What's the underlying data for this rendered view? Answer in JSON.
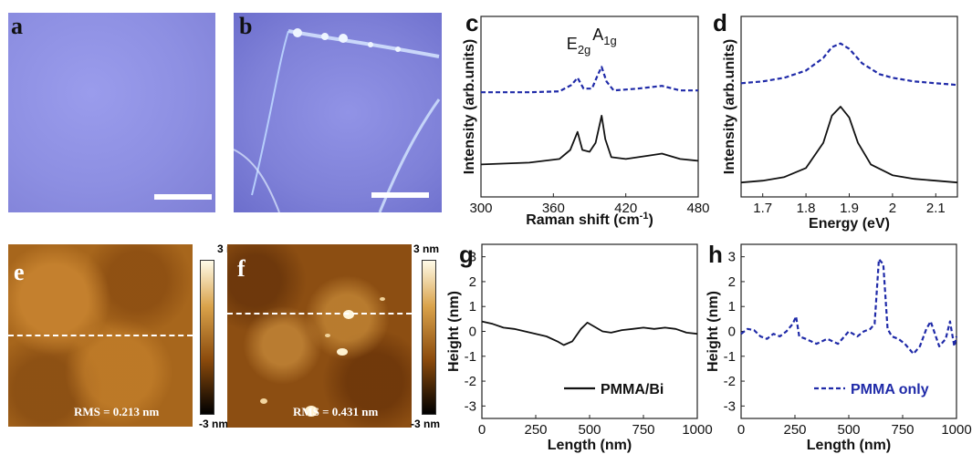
{
  "panels": {
    "a": {
      "label": "a"
    },
    "b": {
      "label": "b"
    },
    "c": {
      "label": "c"
    },
    "d": {
      "label": "d"
    },
    "e": {
      "label": "e",
      "rms": "RMS = 0.213 nm",
      "scale_max": "3 nm",
      "scale_min": "-3 nm"
    },
    "f": {
      "label": "f",
      "rms": "RMS = 0.431 nm",
      "scale_max": "3 nm",
      "scale_min": "-3 nm"
    },
    "g": {
      "label": "g"
    },
    "h": {
      "label": "h"
    }
  },
  "peak_labels": {
    "e2g": "E",
    "e2g_sub": "2g",
    "a1g": "A",
    "a1g_sub": "1g"
  },
  "colors": {
    "solid": "#111111",
    "dashed": "#1f2aa8",
    "optical": "#8e90e4",
    "afm": "#a7661c"
  },
  "chart_data": [
    {
      "id": "c",
      "type": "line",
      "xlabel": "Raman shift (cm-1)",
      "ylabel": "Intensity (arb.units)",
      "xlim": [
        300,
        480
      ],
      "xticks": [
        300,
        360,
        420,
        480
      ],
      "series": [
        {
          "style": "dashed",
          "x": [
            300,
            340,
            365,
            375,
            380,
            385,
            392,
            397,
            400,
            404,
            410,
            430,
            450,
            465,
            480
          ],
          "y": [
            0.58,
            0.58,
            0.585,
            0.62,
            0.66,
            0.6,
            0.6,
            0.68,
            0.72,
            0.64,
            0.59,
            0.6,
            0.615,
            0.59,
            0.59
          ]
        },
        {
          "style": "solid",
          "x": [
            300,
            340,
            365,
            374,
            380,
            384,
            390,
            395,
            400,
            403,
            408,
            420,
            440,
            450,
            465,
            480
          ],
          "y": [
            0.18,
            0.19,
            0.21,
            0.26,
            0.36,
            0.26,
            0.25,
            0.3,
            0.45,
            0.32,
            0.22,
            0.21,
            0.23,
            0.24,
            0.21,
            0.2
          ]
        }
      ]
    },
    {
      "id": "d",
      "type": "line",
      "xlabel": "Energy (eV)",
      "ylabel": "Intensity (arb.units)",
      "xlim": [
        1.65,
        2.15
      ],
      "xticks": [
        1.7,
        1.8,
        1.9,
        2.0,
        2.1
      ],
      "series": [
        {
          "style": "dashed",
          "x": [
            1.65,
            1.7,
            1.75,
            1.8,
            1.84,
            1.86,
            1.88,
            1.9,
            1.93,
            1.97,
            2.0,
            2.05,
            2.1,
            2.15
          ],
          "y": [
            0.63,
            0.64,
            0.66,
            0.7,
            0.77,
            0.83,
            0.85,
            0.82,
            0.74,
            0.68,
            0.66,
            0.64,
            0.63,
            0.62
          ]
        },
        {
          "style": "solid",
          "x": [
            1.65,
            1.7,
            1.75,
            1.8,
            1.84,
            1.86,
            1.88,
            1.9,
            1.92,
            1.95,
            2.0,
            2.05,
            2.1,
            2.15
          ],
          "y": [
            0.08,
            0.09,
            0.11,
            0.16,
            0.3,
            0.45,
            0.5,
            0.44,
            0.3,
            0.18,
            0.12,
            0.1,
            0.09,
            0.08
          ]
        }
      ]
    },
    {
      "id": "g",
      "type": "line",
      "xlabel": "Length (nm)",
      "ylabel": "Height (nm)",
      "xlim": [
        0,
        1000
      ],
      "ylim": [
        -3.5,
        3.5
      ],
      "xticks": [
        0,
        250,
        500,
        750,
        1000
      ],
      "yticks": [
        -3,
        -2,
        -1,
        0,
        1,
        2,
        3
      ],
      "legend": "PMMA/Bi",
      "legend_loc": "bottom-right",
      "series": [
        {
          "name": "PMMA/Bi",
          "style": "solid",
          "x": [
            0,
            50,
            100,
            150,
            200,
            250,
            300,
            350,
            380,
            420,
            460,
            490,
            520,
            560,
            600,
            650,
            700,
            750,
            800,
            850,
            900,
            950,
            1000
          ],
          "y": [
            0.4,
            0.3,
            0.15,
            0.1,
            0.0,
            -0.1,
            -0.2,
            -0.4,
            -0.55,
            -0.4,
            0.1,
            0.35,
            0.2,
            0.0,
            -0.05,
            0.05,
            0.1,
            0.15,
            0.1,
            0.15,
            0.1,
            -0.05,
            -0.1
          ]
        }
      ]
    },
    {
      "id": "h",
      "type": "line",
      "xlabel": "Length (nm)",
      "ylabel": "Height (nm)",
      "xlim": [
        0,
        1000
      ],
      "ylim": [
        -3.5,
        3.5
      ],
      "xticks": [
        0,
        250,
        500,
        750,
        1000
      ],
      "yticks": [
        -3,
        -2,
        -1,
        0,
        1,
        2,
        3
      ],
      "legend": "PMMA only",
      "legend_loc": "bottom-right",
      "series": [
        {
          "name": "PMMA only",
          "style": "dashed",
          "x": [
            0,
            30,
            60,
            90,
            120,
            150,
            180,
            210,
            240,
            255,
            270,
            300,
            350,
            400,
            450,
            500,
            540,
            570,
            600,
            620,
            640,
            650,
            660,
            680,
            700,
            730,
            760,
            800,
            830,
            860,
            880,
            900,
            920,
            950,
            970,
            990,
            1000
          ],
          "y": [
            -0.1,
            0.1,
            0.05,
            -0.2,
            -0.3,
            -0.1,
            -0.2,
            0.0,
            0.3,
            0.6,
            -0.2,
            -0.3,
            -0.5,
            -0.3,
            -0.5,
            0.0,
            -0.2,
            0.0,
            0.1,
            0.3,
            2.9,
            2.8,
            2.7,
            0.1,
            -0.2,
            -0.3,
            -0.5,
            -0.9,
            -0.6,
            0.1,
            0.4,
            -0.1,
            -0.6,
            -0.3,
            0.4,
            -0.6,
            -0.2
          ]
        }
      ]
    }
  ]
}
